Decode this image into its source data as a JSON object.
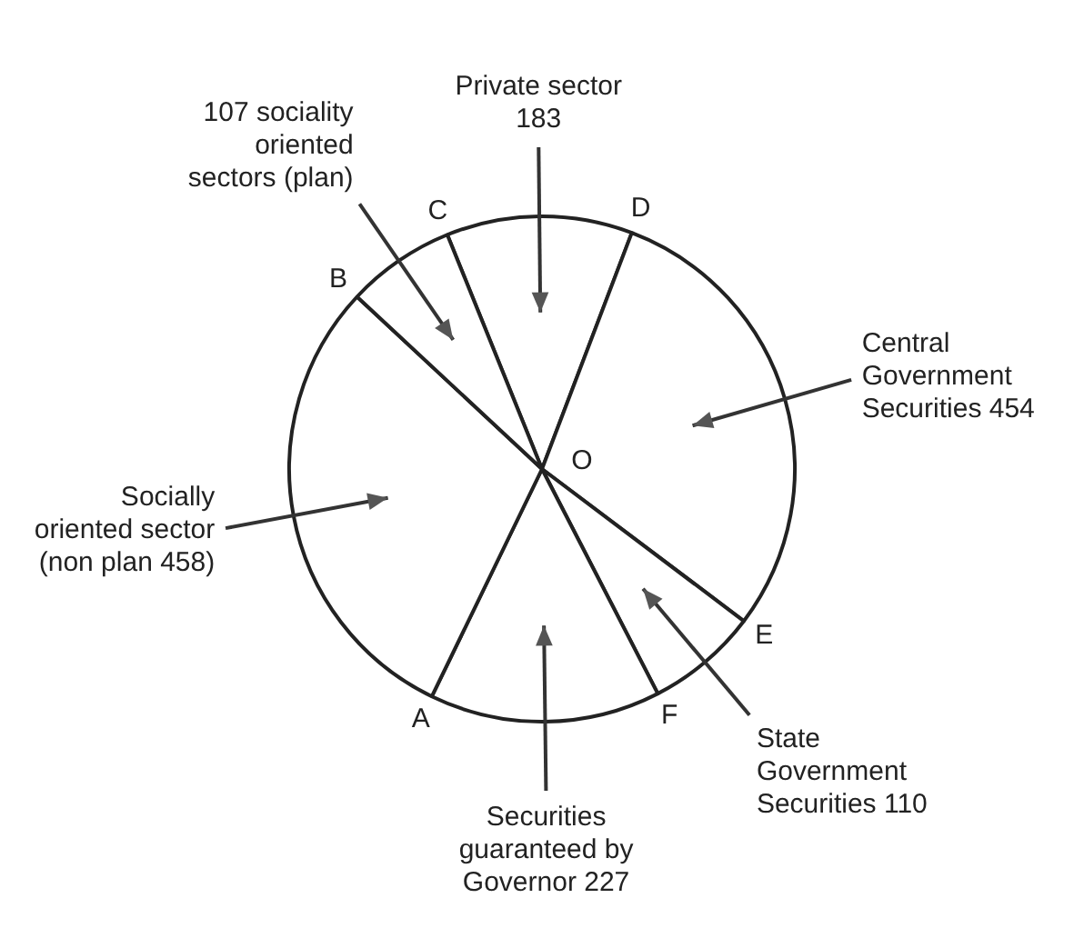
{
  "chart_data": {
    "type": "pie",
    "categories": [
      "Private sector 183",
      "Central Government Securities 454",
      "State Government Securities 110",
      "Securities guaranteed by Governor 227",
      "Socially oriented sector (non plan 458)",
      "107 sociality oriented sectors (plan)"
    ],
    "values": [
      183,
      454,
      110,
      227,
      458,
      107
    ],
    "colors": [
      "#ffffff",
      "#ffffff",
      "#ffffff",
      "#ffffff",
      "#ffffff",
      "#ffffff"
    ],
    "annotations": [
      "O",
      "C",
      "D",
      "E",
      "F",
      "A",
      "B"
    ],
    "legend": false
  }
}
